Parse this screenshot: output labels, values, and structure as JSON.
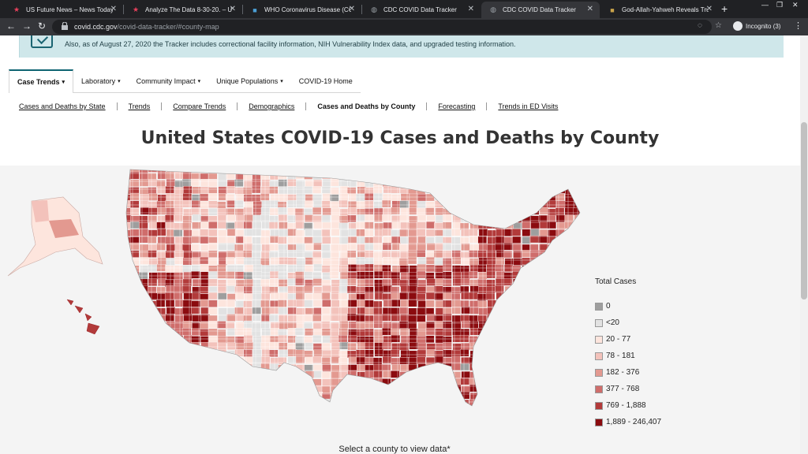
{
  "browser": {
    "tabs": [
      {
        "title": "US Future News – News Today",
        "favicon": "star-icon",
        "color": "#e8405c"
      },
      {
        "title": "Analyze The Data 8-30-20. – US",
        "favicon": "star-icon",
        "color": "#e8405c"
      },
      {
        "title": "WHO Coronavirus Disease (COV",
        "favicon": "who-icon",
        "color": "#4b9fd5"
      },
      {
        "title": "CDC COVID Data Tracker",
        "favicon": "globe-icon",
        "color": "#9aa0a6"
      },
      {
        "title": "CDC COVID Data Tracker",
        "favicon": "globe-icon",
        "color": "#9aa0a6"
      },
      {
        "title": "God-Allah-Yahweh Reveals Trut",
        "favicon": "page-icon",
        "color": "#c9a34a"
      }
    ],
    "active_tab": 4,
    "url_domain": "covid.cdc.gov",
    "url_path": "/covid-data-tracker/#county-map",
    "profile_label": "Incognito (3)"
  },
  "alert": {
    "text": "Also, as of August 27, 2020 the Tracker includes correctional facility information, NIH Vulnerability Index data, and upgraded testing information."
  },
  "nav": {
    "tabs": [
      {
        "label": "Case Trends",
        "dropdown": true
      },
      {
        "label": "Laboratory",
        "dropdown": true
      },
      {
        "label": "Community Impact",
        "dropdown": true
      },
      {
        "label": "Unique Populations",
        "dropdown": true
      },
      {
        "label": "COVID-19 Home",
        "dropdown": false
      }
    ],
    "caret": "▾"
  },
  "subnav": {
    "links": [
      {
        "label": "Cases and Deaths by State"
      },
      {
        "label": "Trends"
      },
      {
        "label": "Compare Trends"
      },
      {
        "label": "Demographics"
      },
      {
        "label": "Cases and Deaths by County"
      },
      {
        "label": "Forecasting"
      },
      {
        "label": "Trends in ED Visits"
      }
    ],
    "current": 4
  },
  "page": {
    "title": "United States COVID-19 Cases and Deaths by County",
    "select_hint": "Select a county to view data*"
  },
  "legend": {
    "title": "Total Cases",
    "items": [
      {
        "label": "0",
        "color": "#9e9e9e"
      },
      {
        "label": "<20",
        "color": "#e2e2e2"
      },
      {
        "label": "20 - 77",
        "color": "#fde5dd"
      },
      {
        "label": "78 - 181",
        "color": "#f3c2bb"
      },
      {
        "label": "182 - 376",
        "color": "#e39990"
      },
      {
        "label": "377 - 768",
        "color": "#cf6d6b"
      },
      {
        "label": "769 - 1,888",
        "color": "#b23a3a"
      },
      {
        "label": "1,889 - 246,407",
        "color": "#8b0b0f"
      }
    ]
  }
}
